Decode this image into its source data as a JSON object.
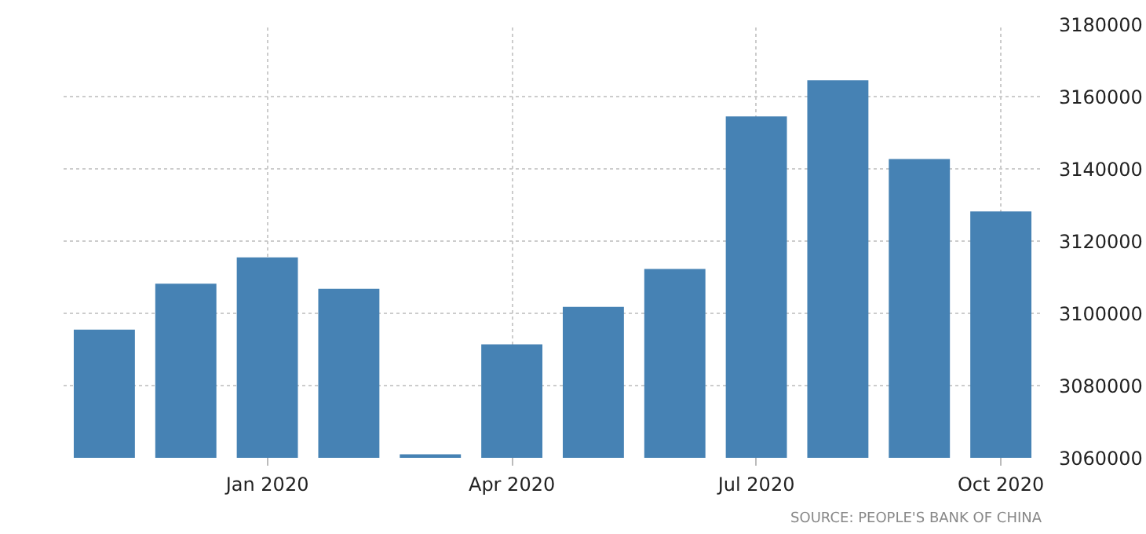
{
  "chart_data": {
    "type": "bar",
    "categories": [
      null,
      null,
      "Jan 2020",
      null,
      null,
      "Apr 2020",
      null,
      null,
      "Jul 2020",
      null,
      null,
      "Oct 2020"
    ],
    "values": [
      3095500,
      3108200,
      3115500,
      3106800,
      3061000,
      3091400,
      3101800,
      3112300,
      3154500,
      3164500,
      3142700,
      3128200
    ],
    "color": "#4682b4",
    "ylim": [
      3060000,
      3180000
    ],
    "yticks": [
      3060000,
      3080000,
      3100000,
      3120000,
      3140000,
      3160000,
      3180000
    ],
    "grid": true,
    "annotations": [
      "SOURCE: PEOPLE'S BANK OF CHINA"
    ]
  }
}
